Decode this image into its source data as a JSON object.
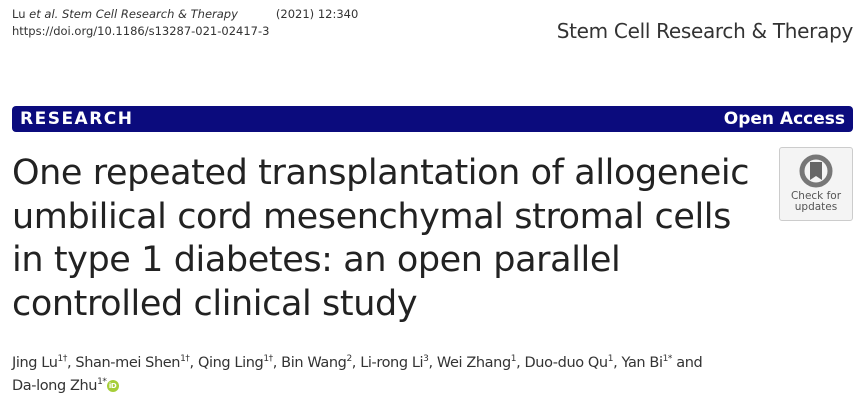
{
  "citation": {
    "authors_short": "Lu",
    "etal": "et al.",
    "journal_italic": "Stem Cell Research & Therapy",
    "year_vol": "(2021) 12:340",
    "doi": "https://doi.org/10.1186/s13287-021-02417-3"
  },
  "journal_name": "Stem Cell Research & Therapy",
  "banner": {
    "type": "RESEARCH",
    "access": "Open Access",
    "color": "#0b0b7d"
  },
  "title": "One repeated transplantation of allogeneic umbilical cord mesenchymal stromal cells in type 1 diabetes: an open parallel controlled clinical study",
  "check_updates": {
    "line1": "Check for",
    "line2": "updates"
  },
  "authors": [
    {
      "name": "Jing Lu",
      "sup": "1†",
      "sep": ", "
    },
    {
      "name": "Shan-mei Shen",
      "sup": "1†",
      "sep": ", "
    },
    {
      "name": "Qing Ling",
      "sup": "1†",
      "sep": ", "
    },
    {
      "name": "Bin Wang",
      "sup": "2",
      "sep": ", "
    },
    {
      "name": "Li-rong Li",
      "sup": "3",
      "sep": ", "
    },
    {
      "name": "Wei Zhang",
      "sup": "1",
      "sep": ", "
    },
    {
      "name": "Duo-duo Qu",
      "sup": "1",
      "sep": ", "
    },
    {
      "name": "Yan Bi",
      "sup": "1*",
      "sep": " and "
    },
    {
      "name": "Da-long Zhu",
      "sup": "1*",
      "sep": ""
    }
  ],
  "orcid_icon": "orcid-icon"
}
